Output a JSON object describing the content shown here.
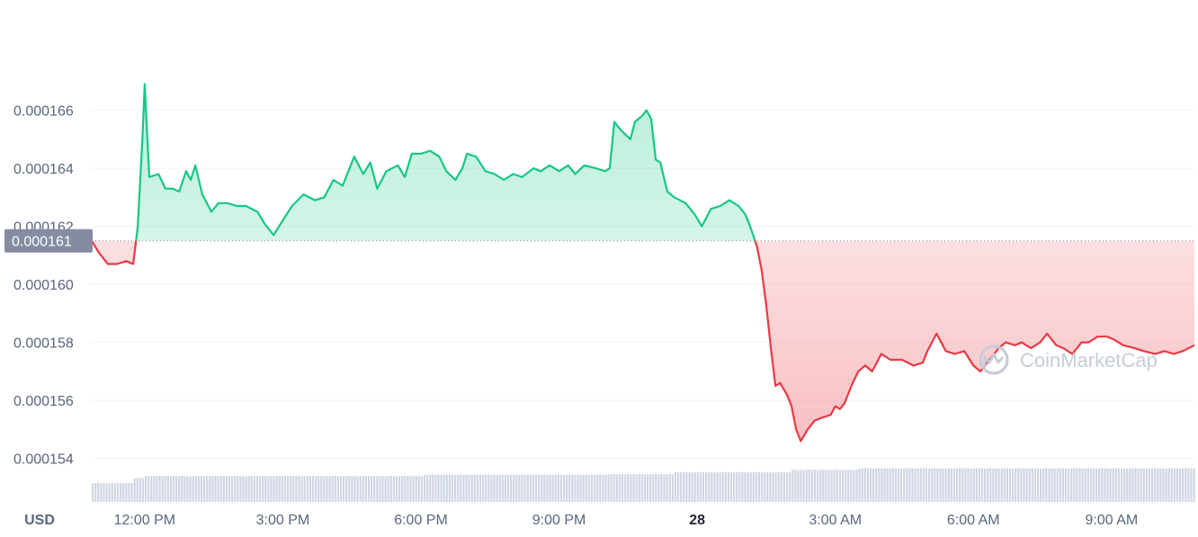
{
  "chart_data": {
    "type": "area",
    "unit_label": "USD",
    "watermark": "CoinMarketCap",
    "reference_price": 0.0001615,
    "reference_label": "0.000161",
    "ylim": [
      0.0001525,
      0.0001698
    ],
    "yticks": [
      {
        "value": 0.000154,
        "label": "0.000154"
      },
      {
        "value": 0.000156,
        "label": "0.000156"
      },
      {
        "value": 0.000158,
        "label": "0.000158"
      },
      {
        "value": 0.00016,
        "label": "0.000160"
      },
      {
        "value": 0.000162,
        "label": "0.000162"
      },
      {
        "value": 0.000164,
        "label": "0.000164"
      },
      {
        "value": 0.000166,
        "label": "0.000166"
      }
    ],
    "xlim": [
      10.85,
      34.8
    ],
    "xticks": [
      {
        "hour": 12,
        "label": "12:00 PM",
        "bold": false
      },
      {
        "hour": 15,
        "label": "3:00 PM",
        "bold": false
      },
      {
        "hour": 18,
        "label": "6:00 PM",
        "bold": false
      },
      {
        "hour": 21,
        "label": "9:00 PM",
        "bold": false
      },
      {
        "hour": 24,
        "label": "28",
        "bold": true
      },
      {
        "hour": 27,
        "label": "3:00 AM",
        "bold": false
      },
      {
        "hour": 30,
        "label": "6:00 AM",
        "bold": false
      },
      {
        "hour": 33,
        "label": "9:00 AM",
        "bold": false
      }
    ],
    "series": [
      {
        "colors": {
          "above": "#16c784",
          "below": "#ea3943"
        },
        "points": [
          [
            10.85,
            0.0001615
          ],
          [
            11.0,
            0.0001611
          ],
          [
            11.2,
            0.0001607
          ],
          [
            11.4,
            0.0001607
          ],
          [
            11.6,
            0.0001608
          ],
          [
            11.75,
            0.0001607
          ],
          [
            11.85,
            0.000162
          ],
          [
            11.95,
            0.000165
          ],
          [
            12.0,
            0.0001669
          ],
          [
            12.1,
            0.0001637
          ],
          [
            12.3,
            0.0001638
          ],
          [
            12.45,
            0.0001633
          ],
          [
            12.6,
            0.0001633
          ],
          [
            12.75,
            0.0001632
          ],
          [
            12.9,
            0.0001639
          ],
          [
            13.0,
            0.0001636
          ],
          [
            13.1,
            0.0001641
          ],
          [
            13.25,
            0.0001631
          ],
          [
            13.45,
            0.0001625
          ],
          [
            13.6,
            0.0001628
          ],
          [
            13.8,
            0.0001628
          ],
          [
            14.0,
            0.0001627
          ],
          [
            14.2,
            0.0001627
          ],
          [
            14.45,
            0.0001625
          ],
          [
            14.6,
            0.0001621
          ],
          [
            14.8,
            0.0001617
          ],
          [
            15.0,
            0.0001622
          ],
          [
            15.2,
            0.0001627
          ],
          [
            15.45,
            0.0001631
          ],
          [
            15.7,
            0.0001629
          ],
          [
            15.9,
            0.000163
          ],
          [
            16.1,
            0.0001636
          ],
          [
            16.3,
            0.0001634
          ],
          [
            16.55,
            0.0001644
          ],
          [
            16.75,
            0.0001638
          ],
          [
            16.9,
            0.0001642
          ],
          [
            17.05,
            0.0001633
          ],
          [
            17.25,
            0.0001639
          ],
          [
            17.5,
            0.0001641
          ],
          [
            17.65,
            0.0001637
          ],
          [
            17.8,
            0.0001645
          ],
          [
            18.0,
            0.0001645
          ],
          [
            18.2,
            0.0001646
          ],
          [
            18.4,
            0.0001644
          ],
          [
            18.55,
            0.0001639
          ],
          [
            18.75,
            0.0001636
          ],
          [
            18.9,
            0.000164
          ],
          [
            19.0,
            0.0001645
          ],
          [
            19.2,
            0.0001644
          ],
          [
            19.4,
            0.0001639
          ],
          [
            19.6,
            0.0001638
          ],
          [
            19.8,
            0.0001636
          ],
          [
            20.0,
            0.0001638
          ],
          [
            20.2,
            0.0001637
          ],
          [
            20.45,
            0.000164
          ],
          [
            20.6,
            0.0001639
          ],
          [
            20.8,
            0.0001641
          ],
          [
            21.0,
            0.0001639
          ],
          [
            21.2,
            0.0001641
          ],
          [
            21.35,
            0.0001638
          ],
          [
            21.55,
            0.0001641
          ],
          [
            21.8,
            0.000164
          ],
          [
            22.0,
            0.0001639
          ],
          [
            22.1,
            0.000164
          ],
          [
            22.2,
            0.0001656
          ],
          [
            22.35,
            0.0001653
          ],
          [
            22.55,
            0.000165
          ],
          [
            22.65,
            0.0001656
          ],
          [
            22.8,
            0.0001658
          ],
          [
            22.9,
            0.000166
          ],
          [
            23.0,
            0.0001657
          ],
          [
            23.1,
            0.0001643
          ],
          [
            23.2,
            0.0001642
          ],
          [
            23.35,
            0.0001632
          ],
          [
            23.5,
            0.000163
          ],
          [
            23.75,
            0.0001628
          ],
          [
            23.95,
            0.0001624
          ],
          [
            24.1,
            0.000162
          ],
          [
            24.3,
            0.0001626
          ],
          [
            24.5,
            0.0001627
          ],
          [
            24.7,
            0.0001629
          ],
          [
            24.9,
            0.0001627
          ],
          [
            25.05,
            0.0001624
          ],
          [
            25.15,
            0.000162
          ],
          [
            25.3,
            0.0001613
          ],
          [
            25.4,
            0.0001605
          ],
          [
            25.5,
            0.0001593
          ],
          [
            25.6,
            0.0001578
          ],
          [
            25.7,
            0.0001565
          ],
          [
            25.8,
            0.0001566
          ],
          [
            25.95,
            0.0001562
          ],
          [
            26.05,
            0.0001558
          ],
          [
            26.15,
            0.000155
          ],
          [
            26.25,
            0.0001546
          ],
          [
            26.4,
            0.000155
          ],
          [
            26.55,
            0.0001553
          ],
          [
            26.7,
            0.0001554
          ],
          [
            26.9,
            0.0001555
          ],
          [
            27.0,
            0.0001558
          ],
          [
            27.1,
            0.0001557
          ],
          [
            27.2,
            0.0001559
          ],
          [
            27.35,
            0.0001565
          ],
          [
            27.5,
            0.000157
          ],
          [
            27.65,
            0.0001572
          ],
          [
            27.8,
            0.000157
          ],
          [
            28.0,
            0.0001576
          ],
          [
            28.2,
            0.0001574
          ],
          [
            28.45,
            0.0001574
          ],
          [
            28.7,
            0.0001572
          ],
          [
            28.9,
            0.0001573
          ],
          [
            29.0,
            0.0001577
          ],
          [
            29.2,
            0.0001583
          ],
          [
            29.4,
            0.0001577
          ],
          [
            29.6,
            0.0001576
          ],
          [
            29.8,
            0.0001577
          ],
          [
            30.0,
            0.0001572
          ],
          [
            30.15,
            0.000157
          ],
          [
            30.35,
            0.0001574
          ],
          [
            30.55,
            0.0001578
          ],
          [
            30.7,
            0.000158
          ],
          [
            30.9,
            0.0001579
          ],
          [
            31.05,
            0.000158
          ],
          [
            31.25,
            0.0001578
          ],
          [
            31.45,
            0.000158
          ],
          [
            31.6,
            0.0001583
          ],
          [
            31.8,
            0.0001579
          ],
          [
            31.95,
            0.0001578
          ],
          [
            32.15,
            0.0001576
          ],
          [
            32.35,
            0.000158
          ],
          [
            32.5,
            0.000158
          ],
          [
            32.7,
            0.0001582
          ],
          [
            32.9,
            0.0001582
          ],
          [
            33.05,
            0.0001581
          ],
          [
            33.25,
            0.0001579
          ],
          [
            33.5,
            0.0001578
          ],
          [
            33.7,
            0.0001577
          ],
          [
            33.95,
            0.0001576
          ],
          [
            34.15,
            0.0001577
          ],
          [
            34.35,
            0.0001576
          ],
          [
            34.55,
            0.0001577
          ],
          [
            34.8,
            0.0001579
          ]
        ]
      }
    ],
    "volume": {
      "color": "#cfd6e4",
      "segments": [
        {
          "from": 10.85,
          "to": 11.75,
          "level": 0.38
        },
        {
          "from": 11.75,
          "to": 12.0,
          "level": 0.48
        },
        {
          "from": 12.0,
          "to": 15.0,
          "level": 0.52
        },
        {
          "from": 15.0,
          "to": 18.0,
          "level": 0.52
        },
        {
          "from": 18.0,
          "to": 22.0,
          "level": 0.55
        },
        {
          "from": 22.0,
          "to": 23.5,
          "level": 0.56
        },
        {
          "from": 23.5,
          "to": 26.0,
          "level": 0.6
        },
        {
          "from": 26.0,
          "to": 27.5,
          "level": 0.65
        },
        {
          "from": 27.5,
          "to": 34.8,
          "level": 0.68
        }
      ]
    }
  }
}
